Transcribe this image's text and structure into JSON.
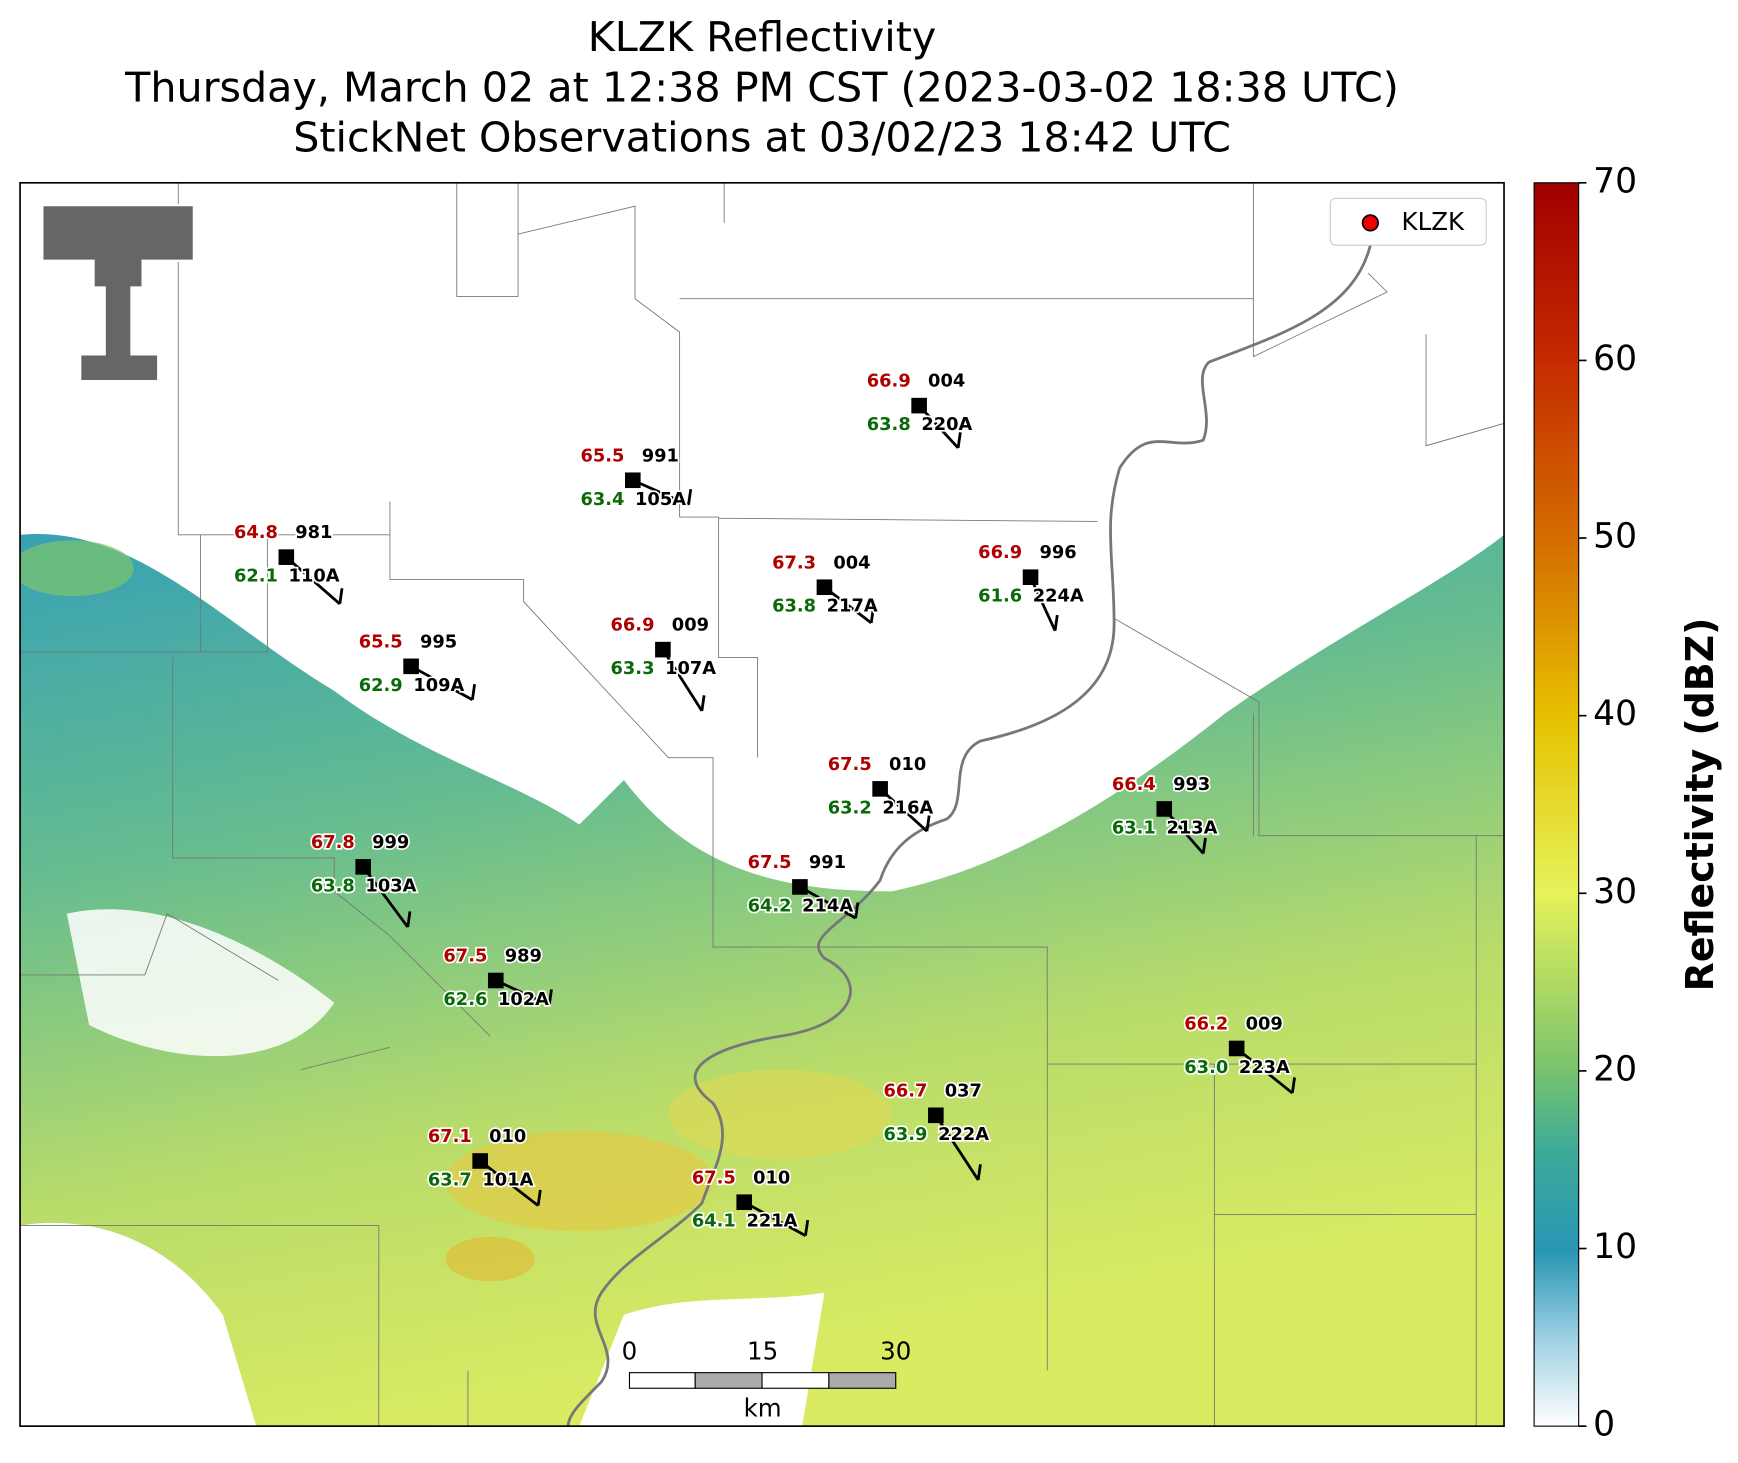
{
  "title": {
    "line1": "KLZK Reflectivity",
    "line2": "Thursday, March 02 at 12:38 PM CST (2023-03-02 18:38 UTC)",
    "line3": "StickNet Observations at 03/02/23 18:42 UTC"
  },
  "legend": [
    "KLZK"
  ],
  "colorbar": {
    "label": "Reflectivity (dBZ)",
    "lim": [
      0,
      70
    ],
    "ticks": [
      0,
      10,
      20,
      30,
      40,
      50,
      60,
      70
    ]
  },
  "scale_bar": {
    "ticks": [
      0,
      15,
      30
    ],
    "unit": "km"
  },
  "stations": [
    {
      "id": "220A",
      "temperature": "66.9",
      "dewpoint": "63.8",
      "pressure": "004"
    },
    {
      "id": "105A",
      "temperature": "65.5",
      "dewpoint": "63.4",
      "pressure": "991"
    },
    {
      "id": "110A",
      "temperature": "64.8",
      "dewpoint": "62.1",
      "pressure": "981"
    },
    {
      "id": "217A",
      "temperature": "67.3",
      "dewpoint": "63.8",
      "pressure": "004"
    },
    {
      "id": "224A",
      "temperature": "66.9",
      "dewpoint": "61.6",
      "pressure": "996"
    },
    {
      "id": "109A",
      "temperature": "65.5",
      "dewpoint": "62.9",
      "pressure": "995"
    },
    {
      "id": "107A",
      "temperature": "66.9",
      "dewpoint": "63.3",
      "pressure": "009"
    },
    {
      "id": "216A",
      "temperature": "67.5",
      "dewpoint": "63.2",
      "pressure": "010"
    },
    {
      "id": "213A",
      "temperature": "66.4",
      "dewpoint": "63.1",
      "pressure": "993"
    },
    {
      "id": "103A",
      "temperature": "67.8",
      "dewpoint": "63.8",
      "pressure": "999"
    },
    {
      "id": "214A",
      "temperature": "67.5",
      "dewpoint": "64.2",
      "pressure": "991"
    },
    {
      "id": "102A",
      "temperature": "67.5",
      "dewpoint": "62.6",
      "pressure": "989"
    },
    {
      "id": "223A",
      "temperature": "66.2",
      "dewpoint": "63.0",
      "pressure": "009"
    },
    {
      "id": "222A",
      "temperature": "66.7",
      "dewpoint": "63.9",
      "pressure": "037"
    },
    {
      "id": "101A",
      "temperature": "67.1",
      "dewpoint": "63.7",
      "pressure": "010"
    },
    {
      "id": "221A",
      "temperature": "67.5",
      "dewpoint": "64.1",
      "pressure": "010"
    }
  ]
}
